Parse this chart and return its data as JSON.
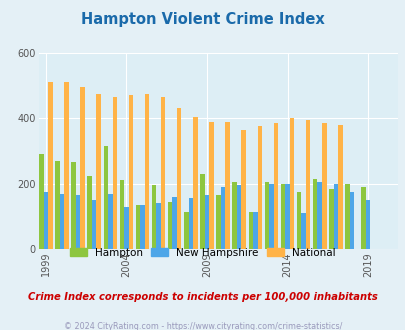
{
  "title": "Hampton Violent Crime Index",
  "subtitle": "Crime Index corresponds to incidents per 100,000 inhabitants",
  "footer": "© 2024 CityRating.com - https://www.cityrating.com/crime-statistics/",
  "years": [
    1999,
    2000,
    2001,
    2002,
    2003,
    2004,
    2005,
    2006,
    2007,
    2008,
    2009,
    2010,
    2011,
    2012,
    2013,
    2014,
    2015,
    2016,
    2017,
    2018,
    2019,
    2020
  ],
  "hampton": [
    290,
    270,
    265,
    225,
    315,
    210,
    135,
    195,
    145,
    115,
    230,
    165,
    205,
    115,
    205,
    200,
    175,
    215,
    185,
    200,
    190,
    0
  ],
  "new_hampshire": [
    175,
    170,
    165,
    150,
    170,
    130,
    135,
    140,
    160,
    155,
    165,
    190,
    195,
    115,
    200,
    200,
    110,
    205,
    200,
    175,
    150,
    0
  ],
  "national": [
    510,
    510,
    495,
    475,
    465,
    470,
    475,
    465,
    430,
    405,
    390,
    390,
    365,
    375,
    385,
    400,
    395,
    385,
    380,
    0,
    0,
    0
  ],
  "colors": {
    "hampton": "#8dc63f",
    "new_hampshire": "#4da6e8",
    "national": "#ffb347"
  },
  "ylim": [
    0,
    600
  ],
  "yticks": [
    0,
    200,
    400,
    600
  ],
  "bg_color": "#e4f0f6",
  "plot_area_color": "#ddeef5",
  "title_color": "#1a6aaa",
  "subtitle_color": "#cc0000",
  "footer_color": "#9999bb",
  "bar_width": 0.28,
  "xlabel_ticks": [
    1999,
    2004,
    2009,
    2014,
    2019
  ]
}
